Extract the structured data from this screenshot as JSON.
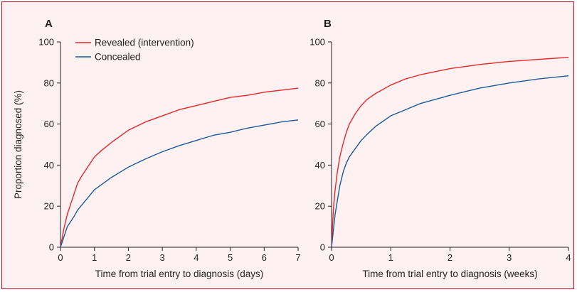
{
  "chart_data": [
    {
      "type": "line",
      "panel_label": "A",
      "xlabel": "Time from trial entry to diagnosis (days)",
      "ylabel": "Proportion diagnosed (%)",
      "xlim": [
        0,
        7
      ],
      "ylim": [
        0,
        100
      ],
      "x_ticks": [
        0,
        1,
        2,
        3,
        4,
        5,
        6,
        7
      ],
      "y_ticks": [
        0,
        20,
        40,
        60,
        80,
        100
      ],
      "grid": false,
      "legend": {
        "placement": "top-left",
        "entries": [
          {
            "label": "Revealed (intervention)",
            "color": "#e8262a"
          },
          {
            "label": "Concealed",
            "color": "#1d5a9a"
          }
        ]
      },
      "series": [
        {
          "color": "#e8262a",
          "x": [
            0,
            0.1,
            0.2,
            0.3,
            0.4,
            0.5,
            0.6,
            0.8,
            1.0,
            1.2,
            1.5,
            1.75,
            2.0,
            2.5,
            3.0,
            3.5,
            4.0,
            4.5,
            5.0,
            5.5,
            6.0,
            6.5,
            7.0
          ],
          "y": [
            0,
            9,
            16,
            21,
            26,
            31,
            34,
            39,
            44,
            47,
            51,
            54,
            57,
            61,
            64,
            67,
            69,
            71,
            73,
            74,
            75.5,
            76.5,
            77.5
          ]
        },
        {
          "color": "#1d5a9a",
          "x": [
            0,
            0.1,
            0.2,
            0.3,
            0.4,
            0.5,
            0.6,
            0.8,
            1.0,
            1.25,
            1.5,
            2.0,
            2.5,
            3.0,
            3.5,
            4.0,
            4.5,
            5.0,
            5.5,
            6.0,
            6.5,
            7.0
          ],
          "y": [
            0,
            5,
            10,
            12.5,
            15,
            18,
            20,
            24,
            28,
            31,
            34,
            39,
            43,
            46.5,
            49.5,
            52,
            54.5,
            56,
            58,
            59.5,
            61,
            62
          ]
        }
      ]
    },
    {
      "type": "line",
      "panel_label": "B",
      "xlabel": "Time from trial entry to diagnosis (weeks)",
      "ylabel": "",
      "xlim": [
        0,
        4
      ],
      "ylim": [
        0,
        100
      ],
      "x_ticks": [
        0,
        1,
        2,
        3,
        4
      ],
      "y_ticks": [
        0,
        20,
        40,
        60,
        80,
        100
      ],
      "grid": false,
      "series": [
        {
          "color": "#e8262a",
          "x": [
            0,
            0.03,
            0.06,
            0.1,
            0.14,
            0.2,
            0.25,
            0.3,
            0.4,
            0.5,
            0.6,
            0.75,
            1.0,
            1.25,
            1.5,
            2.0,
            2.5,
            3.0,
            3.5,
            4.0
          ],
          "y": [
            0,
            18,
            28,
            37,
            44,
            51,
            56,
            60,
            65,
            69,
            72,
            75,
            79,
            82,
            84,
            87,
            89,
            90.5,
            91.5,
            92.5
          ]
        },
        {
          "color": "#1d5a9a",
          "x": [
            0,
            0.03,
            0.06,
            0.1,
            0.14,
            0.2,
            0.25,
            0.3,
            0.4,
            0.5,
            0.6,
            0.75,
            1.0,
            1.25,
            1.5,
            2.0,
            2.5,
            3.0,
            3.5,
            4.0
          ],
          "y": [
            0,
            8,
            16,
            23,
            30,
            37,
            41,
            44,
            48,
            52,
            55,
            59,
            64,
            67,
            70,
            74,
            77.5,
            80,
            82,
            83.5
          ]
        }
      ]
    }
  ]
}
